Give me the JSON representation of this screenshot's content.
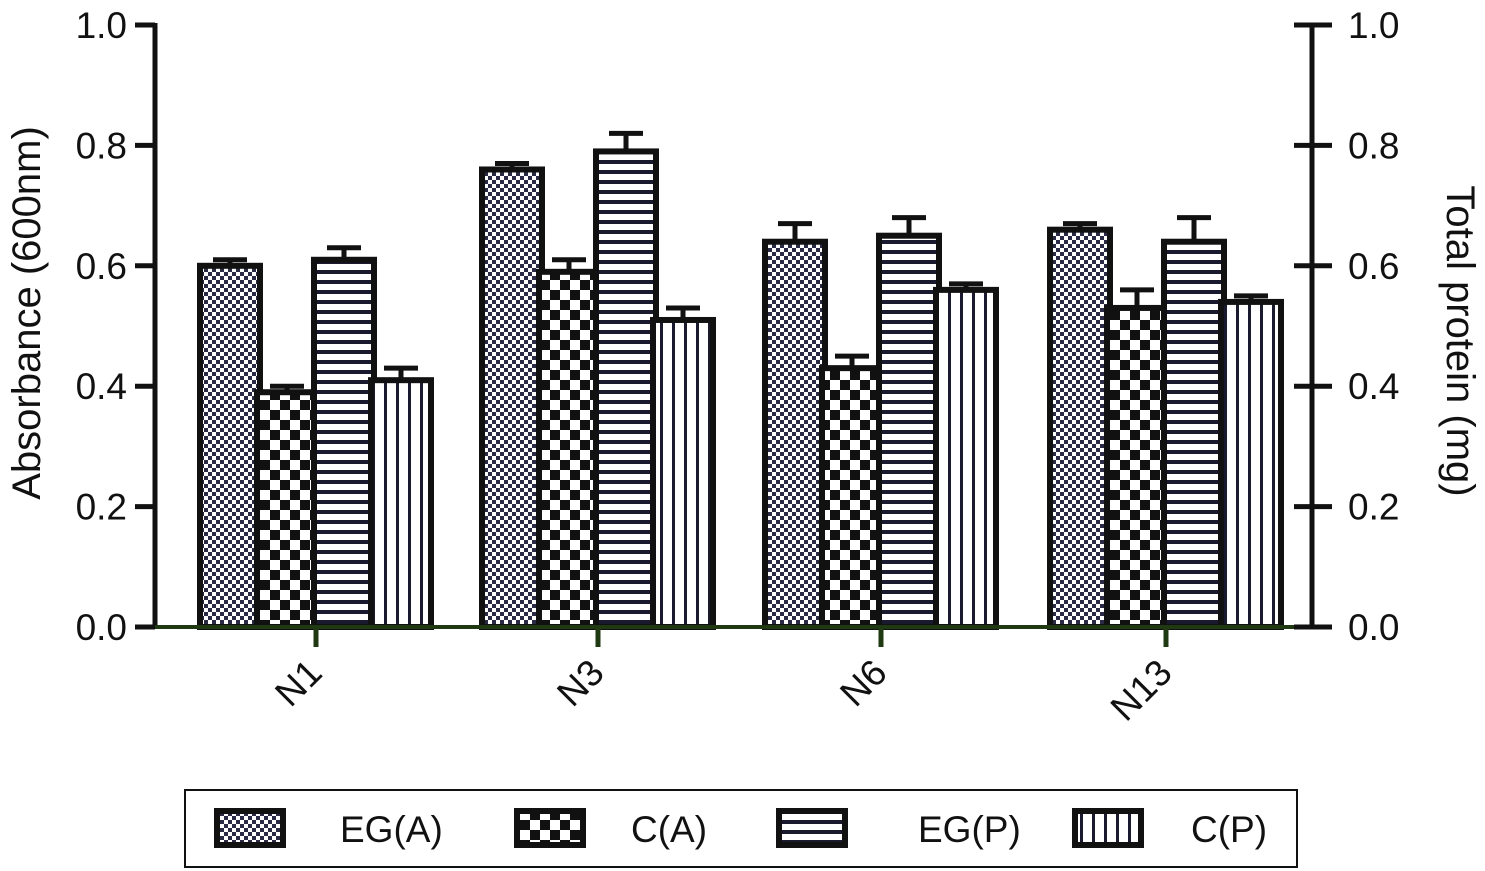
{
  "chart_data": {
    "type": "bar",
    "categories": [
      "N1",
      "N3",
      "N6",
      "N13"
    ],
    "series": [
      {
        "name": "EG(A)",
        "values": [
          0.6,
          0.76,
          0.64,
          0.66
        ],
        "errors": [
          0.01,
          0.01,
          0.03,
          0.01
        ],
        "pattern": "fine-check"
      },
      {
        "name": "C(A)",
        "values": [
          0.39,
          0.59,
          0.43,
          0.53
        ],
        "errors": [
          0.01,
          0.02,
          0.02,
          0.03
        ],
        "pattern": "checker"
      },
      {
        "name": "EG(P)",
        "values": [
          0.61,
          0.79,
          0.65,
          0.64
        ],
        "errors": [
          0.02,
          0.03,
          0.03,
          0.04
        ],
        "pattern": "horizontal"
      },
      {
        "name": "C(P)",
        "values": [
          0.41,
          0.51,
          0.56,
          0.54
        ],
        "errors": [
          0.02,
          0.02,
          0.01,
          0.01
        ],
        "pattern": "vertical"
      }
    ],
    "ylabel": "Absorbance (600nm)",
    "y2label": "Total protein (mg)",
    "ylim": [
      0,
      1.0
    ],
    "y2lim": [
      0,
      1.0
    ],
    "yticks": [
      "0.0",
      "0.2",
      "0.4",
      "0.6",
      "0.8",
      "1.0"
    ],
    "y2ticks": [
      "0.0",
      "0.2",
      "0.4",
      "0.6",
      "0.8",
      "1.0"
    ],
    "grid": false,
    "legend_position": "bottom"
  }
}
